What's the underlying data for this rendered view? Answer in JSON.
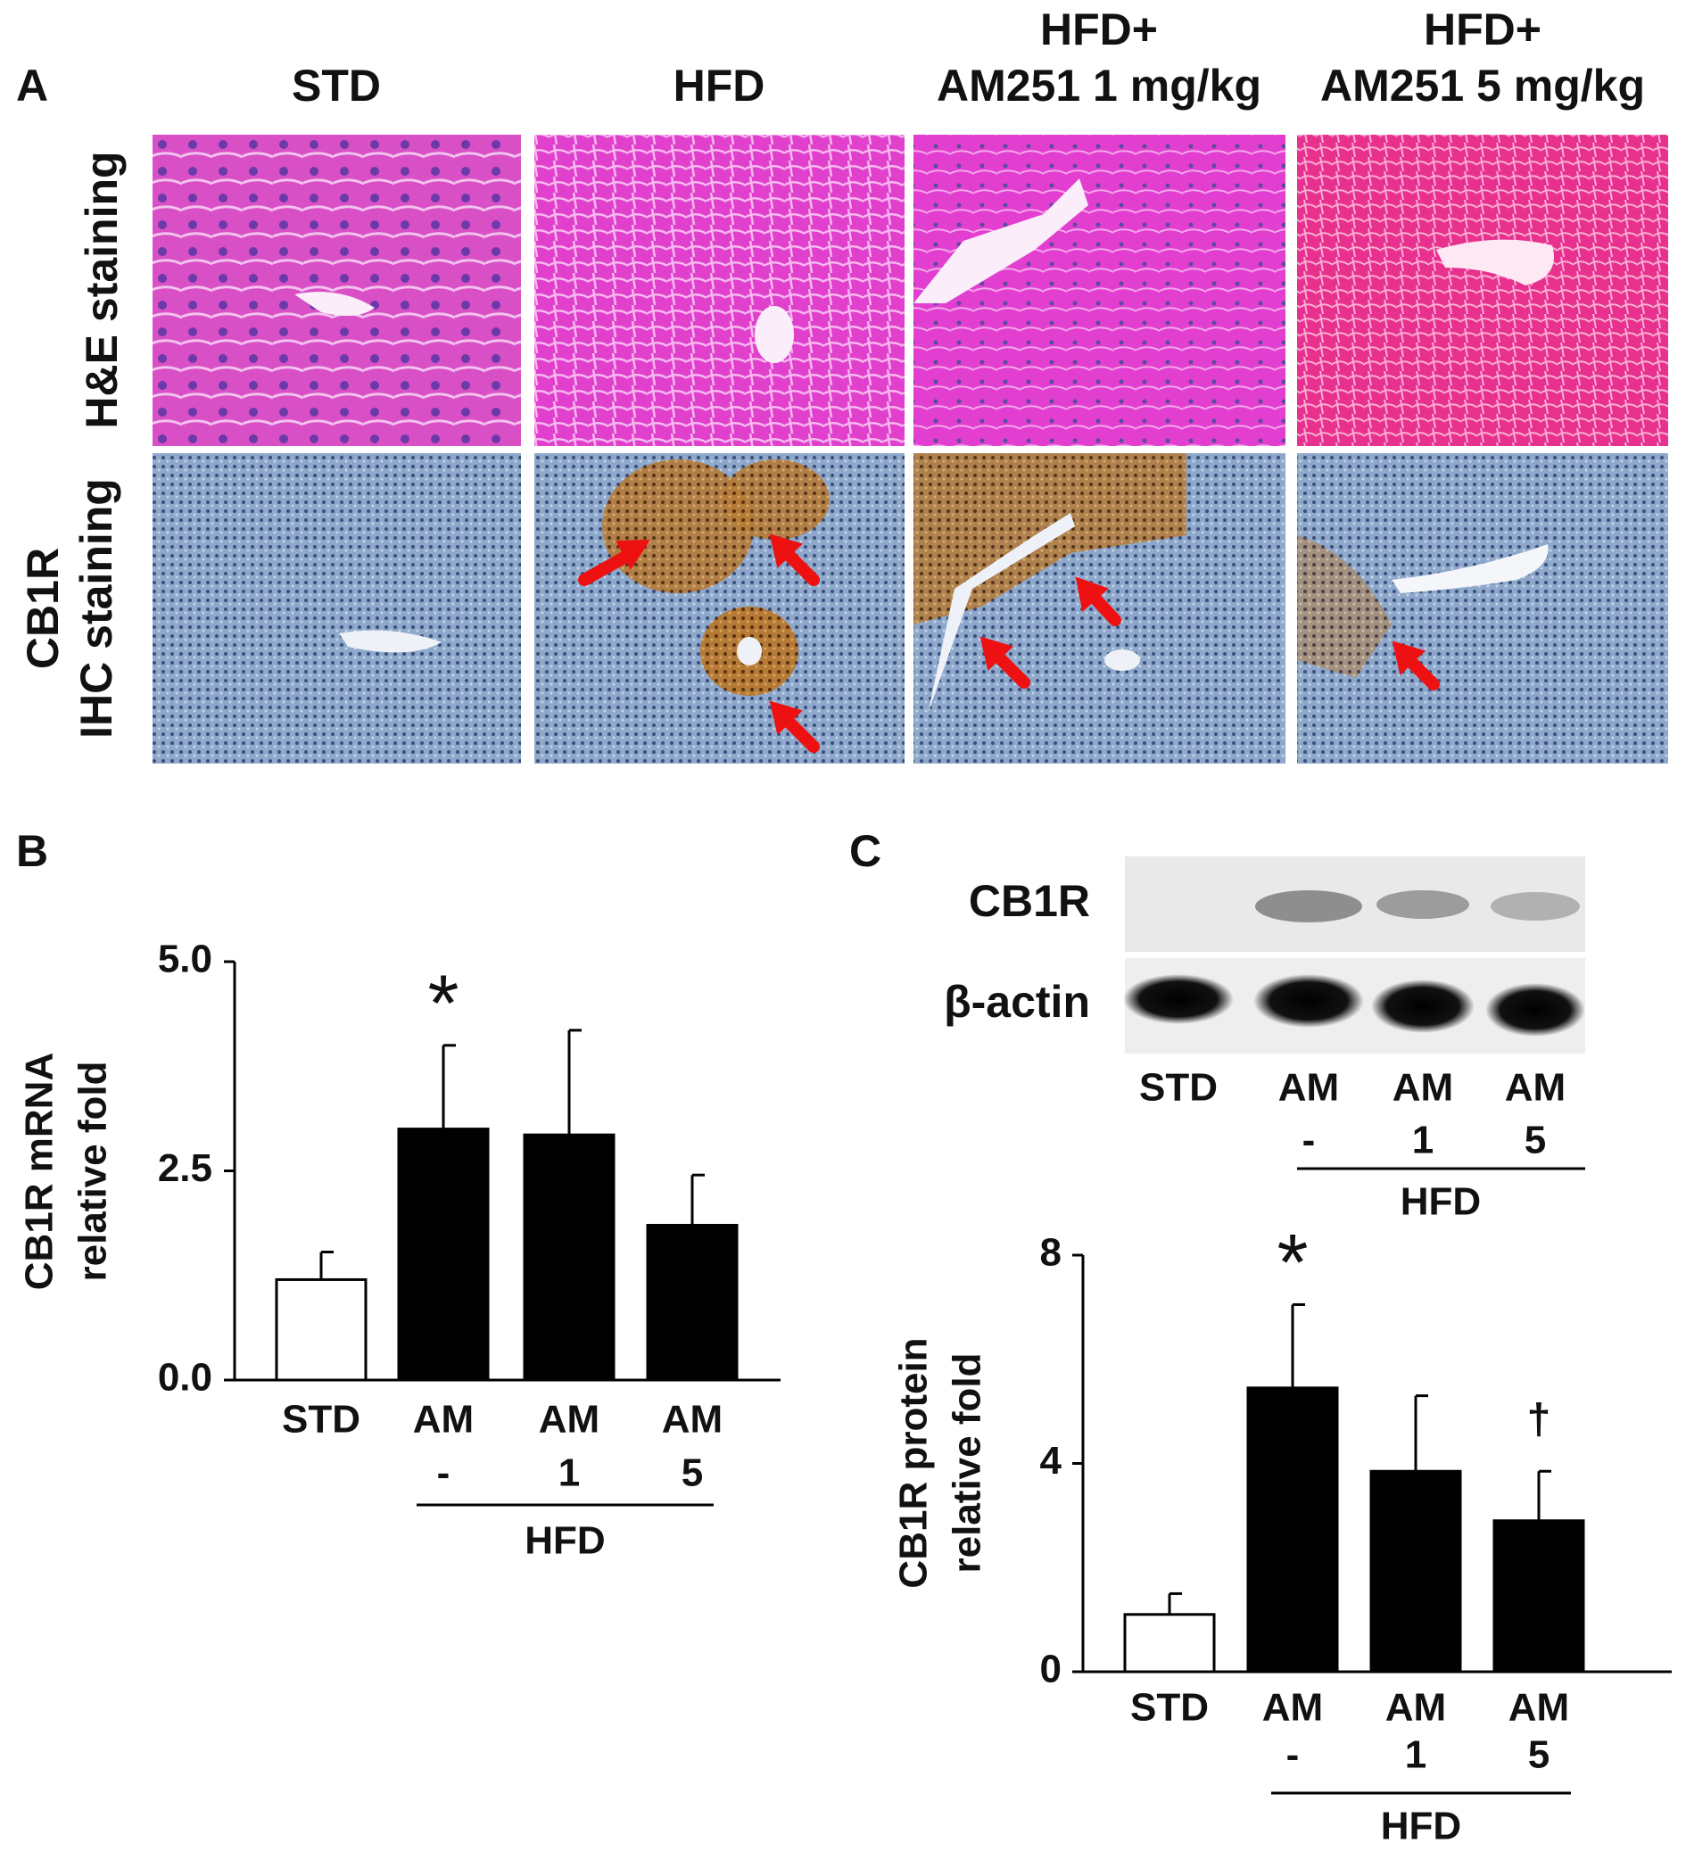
{
  "panel_a": {
    "label": "A",
    "columns": [
      [
        "STD"
      ],
      [
        "HFD"
      ],
      [
        "HFD+",
        "AM251  1 mg/kg"
      ],
      [
        "HFD+",
        "AM251  5 mg/kg"
      ]
    ],
    "rows": [
      [
        "H&E staining"
      ],
      [
        "CB1R",
        "IHC staining"
      ]
    ]
  },
  "panel_b": {
    "label": "B"
  },
  "panel_c": {
    "label": "C",
    "bands": [
      "CB1R",
      "β-actin"
    ],
    "lanes": [
      [
        "STD"
      ],
      [
        "AM",
        "-"
      ],
      [
        "AM",
        "1"
      ],
      [
        "AM",
        "5"
      ]
    ],
    "group": "HFD"
  },
  "chart_data": [
    {
      "type": "bar",
      "ylabel": [
        "CB1R mRNA",
        "relative  fold"
      ],
      "categories": [
        [
          "STD"
        ],
        [
          "AM",
          "-"
        ],
        [
          "AM",
          "1"
        ],
        [
          "AM",
          "5"
        ]
      ],
      "group": "HFD",
      "values": [
        1.2,
        3.0,
        2.93,
        1.85
      ],
      "errors": [
        0.33,
        1.0,
        1.25,
        0.6
      ],
      "significance": [
        null,
        "*",
        null,
        null
      ],
      "colors": [
        "#ffffff",
        "#000000",
        "#000000",
        "#000000"
      ],
      "ylim": [
        0,
        5
      ],
      "yticks": [
        {
          "value": 0,
          "label": "0.0"
        },
        {
          "value": 2.5,
          "label": "2.5"
        },
        {
          "value": 5,
          "label": "5.0"
        }
      ]
    },
    {
      "type": "bar",
      "ylabel": [
        "CB1R protein",
        "relative fold"
      ],
      "categories": [
        [
          "STD"
        ],
        [
          "AM",
          "-"
        ],
        [
          "AM",
          "1"
        ],
        [
          "AM",
          "5"
        ]
      ],
      "group": "HFD",
      "values": [
        1.1,
        5.45,
        3.85,
        2.9
      ],
      "errors": [
        0.4,
        1.6,
        1.45,
        0.95
      ],
      "significance": [
        null,
        "*",
        null,
        "†"
      ],
      "colors": [
        "#ffffff",
        "#000000",
        "#000000",
        "#000000"
      ],
      "ylim": [
        0,
        8
      ],
      "yticks": [
        0,
        4,
        8
      ]
    }
  ]
}
